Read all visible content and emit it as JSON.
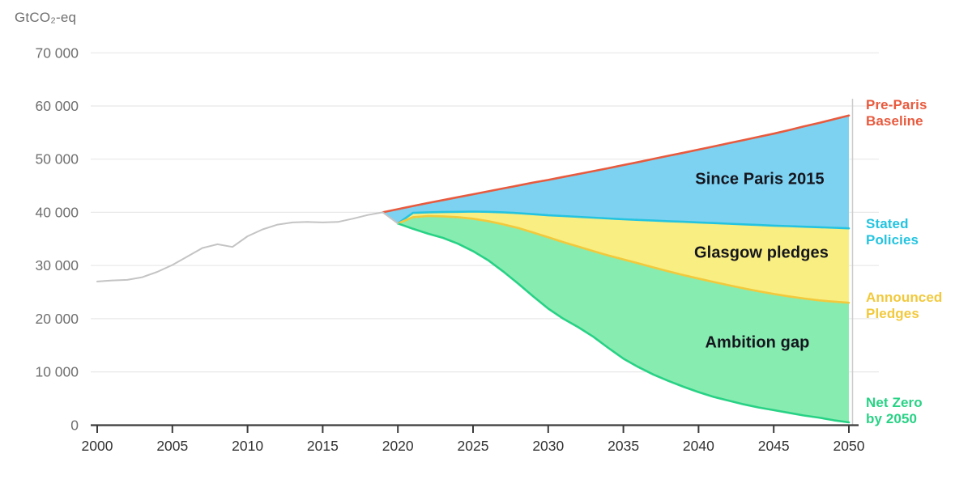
{
  "chart_data": {
    "type": "area",
    "unit_label": "GtCO₂-eq",
    "xlim": [
      2000,
      2050
    ],
    "ylim": [
      0,
      70000
    ],
    "grid": "horizontal",
    "legend_position": "right",
    "x_ticks": [
      2000,
      2005,
      2010,
      2015,
      2020,
      2025,
      2030,
      2035,
      2040,
      2045,
      2050
    ],
    "y_ticks": [
      {
        "value": 0,
        "label": "0"
      },
      {
        "value": 10000,
        "label": "10 000"
      },
      {
        "value": 20000,
        "label": "20 000"
      },
      {
        "value": 30000,
        "label": "30 000"
      },
      {
        "value": 40000,
        "label": "40 000"
      },
      {
        "value": 50000,
        "label": "50 000"
      },
      {
        "value": 60000,
        "label": "60 000"
      },
      {
        "value": 70000,
        "label": "70 000"
      }
    ],
    "series": {
      "historical": {
        "color": "#c4c4c4",
        "points": [
          [
            2000,
            27000
          ],
          [
            2001,
            27200
          ],
          [
            2002,
            27300
          ],
          [
            2003,
            27800
          ],
          [
            2004,
            28800
          ],
          [
            2005,
            30100
          ],
          [
            2006,
            31700
          ],
          [
            2007,
            33300
          ],
          [
            2008,
            34000
          ],
          [
            2009,
            33500
          ],
          [
            2010,
            35500
          ],
          [
            2011,
            36800
          ],
          [
            2012,
            37700
          ],
          [
            2013,
            38100
          ],
          [
            2014,
            38200
          ],
          [
            2015,
            38100
          ],
          [
            2016,
            38200
          ],
          [
            2017,
            38800
          ],
          [
            2018,
            39500
          ],
          [
            2019,
            40000
          ],
          [
            2020,
            37900
          ]
        ]
      },
      "baseline": {
        "label": "Pre-Paris Baseline",
        "color": "#e85a3e",
        "points": [
          [
            2019,
            40000
          ],
          [
            2020,
            40600
          ],
          [
            2021,
            41200
          ],
          [
            2022,
            41750
          ],
          [
            2023,
            42300
          ],
          [
            2024,
            42850
          ],
          [
            2025,
            43400
          ],
          [
            2026,
            43950
          ],
          [
            2027,
            44500
          ],
          [
            2028,
            45050
          ],
          [
            2029,
            45600
          ],
          [
            2030,
            46100
          ],
          [
            2031,
            46650
          ],
          [
            2032,
            47200
          ],
          [
            2033,
            47750
          ],
          [
            2034,
            48300
          ],
          [
            2035,
            48900
          ],
          [
            2036,
            49450
          ],
          [
            2037,
            50050
          ],
          [
            2038,
            50650
          ],
          [
            2039,
            51200
          ],
          [
            2040,
            51800
          ],
          [
            2041,
            52400
          ],
          [
            2042,
            53000
          ],
          [
            2043,
            53600
          ],
          [
            2044,
            54200
          ],
          [
            2045,
            54800
          ],
          [
            2046,
            55450
          ],
          [
            2047,
            56150
          ],
          [
            2048,
            56800
          ],
          [
            2049,
            57500
          ],
          [
            2050,
            58200
          ]
        ]
      },
      "stated": {
        "label": "Stated Policies",
        "color": "#24c4e0",
        "points": [
          [
            2019,
            40000
          ],
          [
            2020,
            37900
          ],
          [
            2021,
            39900
          ],
          [
            2022,
            40000
          ],
          [
            2023,
            40050
          ],
          [
            2024,
            40100
          ],
          [
            2025,
            40150
          ],
          [
            2026,
            40100
          ],
          [
            2027,
            40000
          ],
          [
            2028,
            39850
          ],
          [
            2029,
            39650
          ],
          [
            2030,
            39450
          ],
          [
            2031,
            39300
          ],
          [
            2032,
            39150
          ],
          [
            2033,
            39000
          ],
          [
            2034,
            38850
          ],
          [
            2035,
            38700
          ],
          [
            2036,
            38580
          ],
          [
            2037,
            38460
          ],
          [
            2038,
            38340
          ],
          [
            2039,
            38220
          ],
          [
            2040,
            38100
          ],
          [
            2041,
            37980
          ],
          [
            2042,
            37860
          ],
          [
            2043,
            37740
          ],
          [
            2044,
            37620
          ],
          [
            2045,
            37500
          ],
          [
            2046,
            37400
          ],
          [
            2047,
            37300
          ],
          [
            2048,
            37200
          ],
          [
            2049,
            37100
          ],
          [
            2050,
            37000
          ]
        ]
      },
      "announced": {
        "label": "Announced Pledges",
        "color": "#f2c93c",
        "points": [
          [
            2019,
            40000
          ],
          [
            2020,
            37900
          ],
          [
            2021,
            39100
          ],
          [
            2022,
            39300
          ],
          [
            2023,
            39250
          ],
          [
            2024,
            39100
          ],
          [
            2025,
            38800
          ],
          [
            2026,
            38350
          ],
          [
            2027,
            37750
          ],
          [
            2028,
            37050
          ],
          [
            2029,
            36200
          ],
          [
            2030,
            35300
          ],
          [
            2031,
            34400
          ],
          [
            2032,
            33550
          ],
          [
            2033,
            32700
          ],
          [
            2034,
            31900
          ],
          [
            2035,
            31150
          ],
          [
            2036,
            30400
          ],
          [
            2037,
            29650
          ],
          [
            2038,
            28900
          ],
          [
            2039,
            28200
          ],
          [
            2040,
            27550
          ],
          [
            2041,
            26900
          ],
          [
            2042,
            26300
          ],
          [
            2043,
            25700
          ],
          [
            2044,
            25150
          ],
          [
            2045,
            24650
          ],
          [
            2046,
            24200
          ],
          [
            2047,
            23800
          ],
          [
            2048,
            23450
          ],
          [
            2049,
            23200
          ],
          [
            2050,
            23000
          ]
        ]
      },
      "netzero": {
        "label": "Net Zero by 2050",
        "color": "#28d285",
        "points": [
          [
            2019,
            40000
          ],
          [
            2020,
            37900
          ],
          [
            2021,
            36900
          ],
          [
            2022,
            36000
          ],
          [
            2023,
            35200
          ],
          [
            2024,
            34100
          ],
          [
            2025,
            32700
          ],
          [
            2026,
            31000
          ],
          [
            2027,
            28900
          ],
          [
            2028,
            26600
          ],
          [
            2029,
            24200
          ],
          [
            2030,
            21900
          ],
          [
            2031,
            20000
          ],
          [
            2032,
            18400
          ],
          [
            2033,
            16600
          ],
          [
            2034,
            14500
          ],
          [
            2035,
            12500
          ],
          [
            2036,
            10900
          ],
          [
            2037,
            9500
          ],
          [
            2038,
            8300
          ],
          [
            2039,
            7200
          ],
          [
            2040,
            6200
          ],
          [
            2041,
            5300
          ],
          [
            2042,
            4600
          ],
          [
            2043,
            3900
          ],
          [
            2044,
            3300
          ],
          [
            2045,
            2800
          ],
          [
            2046,
            2300
          ],
          [
            2047,
            1800
          ],
          [
            2048,
            1400
          ],
          [
            2049,
            900
          ],
          [
            2050,
            500
          ]
        ]
      }
    },
    "areas": [
      {
        "label": "Since Paris 2015",
        "top": "baseline",
        "bottom": "stated",
        "fill": "#7dd2f1"
      },
      {
        "label": "Glasgow pledges",
        "top": "stated",
        "bottom": "announced",
        "fill": "#f9ee81"
      },
      {
        "label": "Ambition gap",
        "top": "announced",
        "bottom": "netzero",
        "fill": "#87ecb0"
      }
    ],
    "colors": {
      "grid": "#e8e8e8",
      "axis": "#3b3b3b",
      "y_tick_text": "#6f6f6f",
      "x_tick_text": "#333333",
      "annotation_text": "#15151e",
      "plot_right_border": "#cccccc"
    }
  }
}
